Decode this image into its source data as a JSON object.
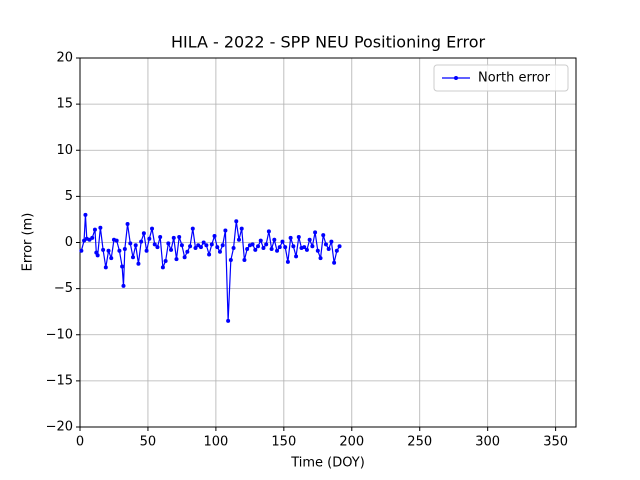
{
  "chart_data": {
    "type": "line",
    "title": "HILA - 2022 - SPP NEU Positioning Error",
    "xlabel": "Time (DOY)",
    "ylabel": "Error (m)",
    "x": [
      1,
      3,
      4,
      5,
      7,
      9,
      11,
      12,
      13,
      15,
      17,
      19,
      21,
      23,
      25,
      27,
      29,
      31,
      32,
      33,
      35,
      37,
      39,
      41,
      43,
      45,
      47,
      49,
      51,
      53,
      55,
      57,
      59,
      61,
      63,
      65,
      67,
      69,
      71,
      73,
      75,
      77,
      79,
      81,
      83,
      85,
      87,
      89,
      91,
      93,
      95,
      97,
      99,
      101,
      103,
      105,
      107,
      109,
      111,
      113,
      115,
      117,
      119,
      121,
      123,
      125,
      127,
      129,
      131,
      133,
      135,
      137,
      139,
      141,
      143,
      145,
      147,
      149,
      151,
      153,
      155,
      157,
      159,
      161,
      163,
      165,
      167,
      169,
      171,
      173,
      175,
      177,
      179,
      181,
      183,
      185,
      187,
      189,
      191
    ],
    "series": [
      {
        "name": "North error",
        "color": "#0000ff",
        "values": [
          -0.9,
          0.2,
          3.0,
          0.4,
          0.3,
          0.5,
          1.4,
          -1.1,
          -1.4,
          1.6,
          -0.8,
          -2.7,
          -0.9,
          -1.7,
          0.3,
          0.2,
          -0.9,
          -2.6,
          -4.7,
          -0.7,
          2.0,
          -0.1,
          -1.6,
          -0.3,
          -2.3,
          0.1,
          1.0,
          -0.9,
          0.4,
          1.5,
          -0.2,
          -0.5,
          0.6,
          -2.7,
          -2.0,
          -0.1,
          -0.8,
          0.5,
          -1.8,
          0.6,
          -0.3,
          -1.6,
          -1.0,
          -0.4,
          1.5,
          -0.6,
          -0.3,
          -0.5,
          0.0,
          -0.3,
          -1.3,
          -0.2,
          0.7,
          -0.5,
          -1.0,
          -0.3,
          1.3,
          -8.5,
          -1.9,
          -0.6,
          2.3,
          0.3,
          1.5,
          -1.9,
          -0.7,
          -0.3,
          -0.2,
          -0.8,
          -0.4,
          0.2,
          -0.6,
          -0.2,
          1.2,
          -0.7,
          0.3,
          -0.9,
          -0.5,
          0.1,
          -0.5,
          -2.1,
          0.5,
          -0.4,
          -1.5,
          0.6,
          -0.6,
          -0.5,
          -0.8,
          0.3,
          -0.4,
          1.1,
          -0.9,
          -1.7,
          0.8,
          -0.2,
          -0.7,
          0.1,
          -2.2,
          -0.9,
          -0.4
        ]
      }
    ],
    "xlim": [
      0,
      365
    ],
    "ylim": [
      -20,
      20
    ],
    "xticks": [
      0,
      50,
      100,
      150,
      200,
      250,
      300,
      350
    ],
    "yticks": [
      {
        "value": -20,
        "label": "−20"
      },
      {
        "value": -15,
        "label": "−15"
      },
      {
        "value": -10,
        "label": "−10"
      },
      {
        "value": -5,
        "label": "−5"
      },
      0,
      5,
      10,
      15,
      20
    ],
    "grid": true,
    "legend": "upper right"
  }
}
